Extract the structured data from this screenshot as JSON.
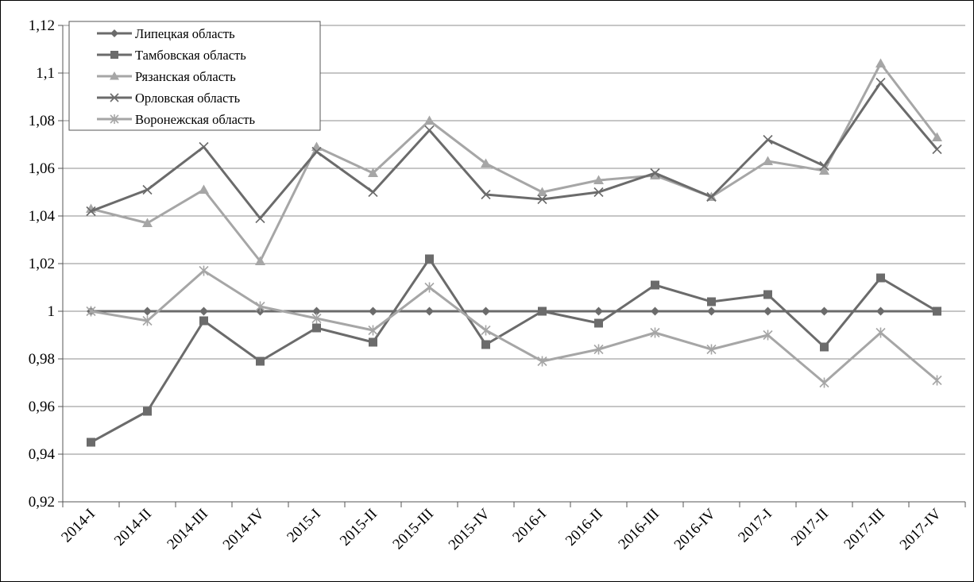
{
  "chart_data": {
    "type": "line",
    "title": "",
    "xlabel": "",
    "ylabel": "",
    "ylim": [
      0.92,
      1.12
    ],
    "yticks": [
      0.92,
      0.94,
      0.96,
      0.98,
      1.0,
      1.02,
      1.04,
      1.06,
      1.08,
      1.1,
      1.12
    ],
    "ytick_labels": [
      "0,92",
      "0,94",
      "0,96",
      "0,98",
      "1",
      "1,02",
      "1,04",
      "1,06",
      "1,08",
      "1,1",
      "1,12"
    ],
    "grid": "horizontal",
    "legend_position": "top-left",
    "categories": [
      "2014-I",
      "2014-II",
      "2014-III",
      "2014-IV",
      "2015-I",
      "2015-II",
      "2015-III",
      "2015-IV",
      "2016-I",
      "2016-II",
      "2016-III",
      "2016-IV",
      "2017-I",
      "2017-II",
      "2017-III",
      "2017-IV"
    ],
    "series": [
      {
        "name": "Липецкая область",
        "marker": "diamond",
        "color": "#6b6b6b",
        "values": [
          1.0,
          1.0,
          1.0,
          1.0,
          1.0,
          1.0,
          1.0,
          1.0,
          1.0,
          1.0,
          1.0,
          1.0,
          1.0,
          1.0,
          1.0,
          1.0
        ]
      },
      {
        "name": "Тамбовская область",
        "marker": "square",
        "color": "#6b6b6b",
        "values": [
          0.945,
          0.958,
          0.996,
          0.979,
          0.993,
          0.987,
          1.022,
          0.986,
          1.0,
          0.995,
          1.011,
          1.004,
          1.007,
          0.985,
          1.014,
          1.0
        ]
      },
      {
        "name": "Рязанская область",
        "marker": "triangle",
        "color": "#a6a6a6",
        "values": [
          1.043,
          1.037,
          1.051,
          1.021,
          1.069,
          1.058,
          1.08,
          1.062,
          1.05,
          1.055,
          1.057,
          1.048,
          1.063,
          1.059,
          1.104,
          1.073
        ]
      },
      {
        "name": "Орловская область",
        "marker": "x",
        "color": "#6b6b6b",
        "values": [
          1.042,
          1.051,
          1.069,
          1.039,
          1.067,
          1.05,
          1.076,
          1.049,
          1.047,
          1.05,
          1.058,
          1.048,
          1.072,
          1.061,
          1.096,
          1.068
        ]
      },
      {
        "name": "Воронежская область",
        "marker": "asterisk",
        "color": "#a6a6a6",
        "values": [
          1.0,
          0.996,
          1.017,
          1.002,
          0.997,
          0.992,
          1.01,
          0.992,
          0.979,
          0.984,
          0.991,
          0.984,
          0.99,
          0.97,
          0.991,
          0.971
        ]
      }
    ]
  }
}
